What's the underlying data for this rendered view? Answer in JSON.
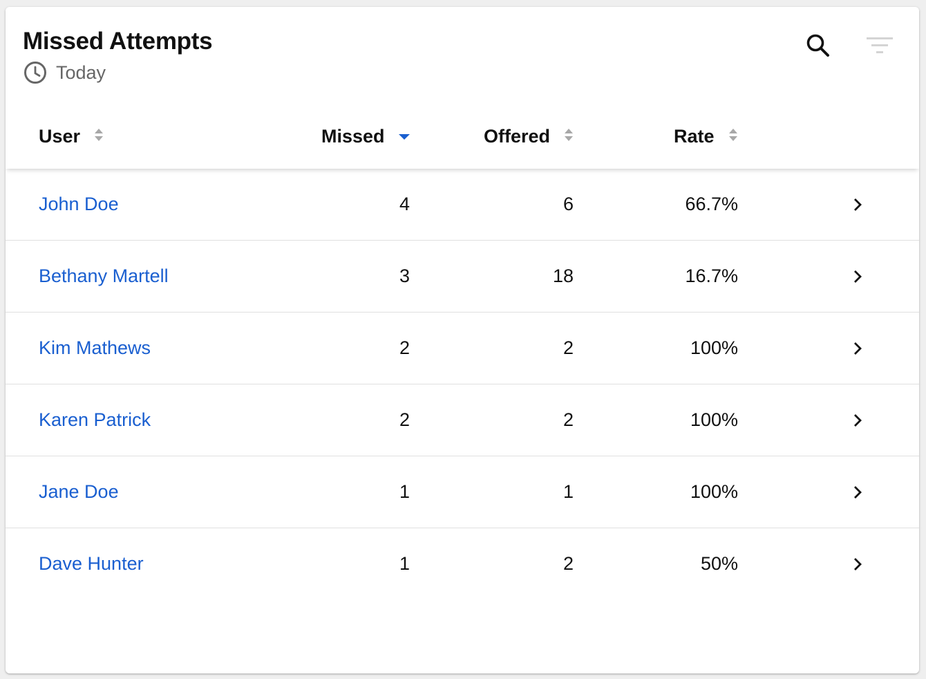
{
  "widget": {
    "title": "Missed Attempts",
    "period_label": "Today",
    "period_icon": "clock-icon",
    "search_icon": "search-icon",
    "filter_icon": "filter-icon"
  },
  "table": {
    "columns": [
      {
        "key": "user",
        "label": "User",
        "sort": "none"
      },
      {
        "key": "missed",
        "label": "Missed",
        "sort": "descending"
      },
      {
        "key": "offered",
        "label": "Offered",
        "sort": "none"
      },
      {
        "key": "rate",
        "label": "Rate",
        "sort": "none"
      }
    ],
    "rows": [
      {
        "user": "John Doe",
        "missed": "4",
        "offered": "6",
        "rate": "66.7%"
      },
      {
        "user": "Bethany Martell",
        "missed": "3",
        "offered": "18",
        "rate": "16.7%"
      },
      {
        "user": "Kim Mathews",
        "missed": "2",
        "offered": "2",
        "rate": "100%"
      },
      {
        "user": "Karen Patrick",
        "missed": "2",
        "offered": "2",
        "rate": "100%"
      },
      {
        "user": "Jane Doe",
        "missed": "1",
        "offered": "1",
        "rate": "100%"
      },
      {
        "user": "Dave Hunter",
        "missed": "1",
        "offered": "2",
        "rate": "50%"
      }
    ]
  },
  "colors": {
    "link": "#1a5fd0",
    "sort_active": "#1a5fd0",
    "sort_inactive": "#a8a8a8",
    "text": "#111111",
    "muted": "#666666",
    "filter_disabled": "#d4d4d4"
  }
}
